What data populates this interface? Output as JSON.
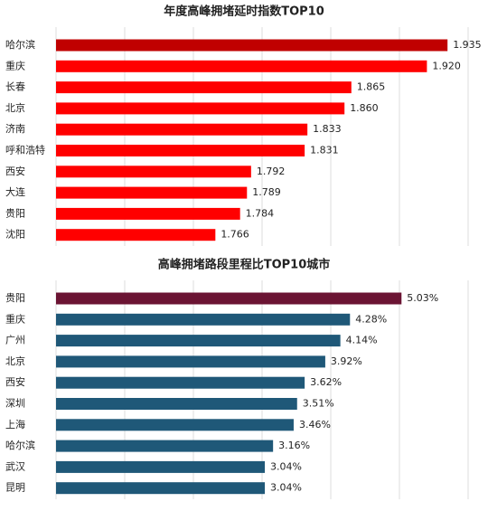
{
  "chart_data": [
    {
      "type": "barh",
      "title": "年度高峰拥堵延时指数TOP10",
      "categories": [
        "哈尔滨",
        "重庆",
        "长春",
        "北京",
        "济南",
        "呼和浩特",
        "西安",
        "大连",
        "贵阳",
        "沈阳"
      ],
      "values": [
        1.935,
        1.92,
        1.865,
        1.86,
        1.833,
        1.831,
        1.792,
        1.789,
        1.784,
        1.766
      ],
      "value_labels": [
        "1.935",
        "1.920",
        "1.865",
        "1.860",
        "1.833",
        "1.831",
        "1.792",
        "1.789",
        "1.784",
        "1.766"
      ],
      "colors": [
        "#c00000",
        "#ff0000",
        "#ff0000",
        "#ff0000",
        "#ff0000",
        "#ff0000",
        "#ff0000",
        "#ff0000",
        "#ff0000",
        "#ff0000"
      ],
      "xlim": [
        1.65,
        1.95
      ],
      "xticks": [
        1.65,
        1.7,
        1.75,
        1.8,
        1.85,
        1.9,
        1.95
      ],
      "grid": true
    },
    {
      "type": "barh",
      "title": "高峰拥堵路段里程比TOP10城市",
      "categories": [
        "贵阳",
        "重庆",
        "广州",
        "北京",
        "西安",
        "深圳",
        "上海",
        "哈尔滨",
        "武汉",
        "昆明"
      ],
      "values": [
        5.03,
        4.28,
        4.14,
        3.92,
        3.62,
        3.51,
        3.46,
        3.16,
        3.04,
        3.04
      ],
      "value_labels": [
        "5.03%",
        "4.28%",
        "4.14%",
        "3.92%",
        "3.62%",
        "3.51%",
        "3.46%",
        "3.16%",
        "3.04%",
        "3.04%"
      ],
      "colors": [
        "#6b1433",
        "#1f5878",
        "#1f5878",
        "#1f5878",
        "#1f5878",
        "#1f5878",
        "#1f5878",
        "#1f5878",
        "#1f5878",
        "#1f5878"
      ],
      "xlim": [
        0,
        6
      ],
      "xticks": [
        0,
        1,
        2,
        3,
        4,
        5,
        6
      ],
      "grid": true
    }
  ]
}
